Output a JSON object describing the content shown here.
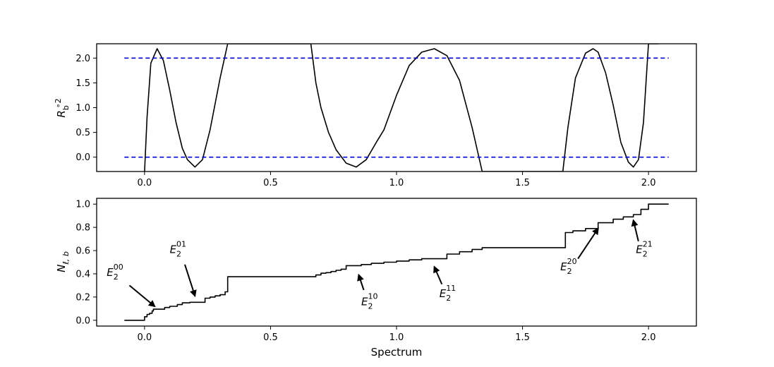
{
  "chart_data": [
    {
      "type": "line",
      "ylabel": "R°b²",
      "ylabel_parts": {
        "base": "R",
        "sup": "∘2",
        "sub": "b"
      },
      "xlim": [
        -0.19,
        2.19
      ],
      "ylim": [
        -0.29,
        2.29
      ],
      "xticks": [
        0.0,
        0.5,
        1.0,
        1.5,
        2.0
      ],
      "xtick_labels": [
        "0.0",
        "0.5",
        "1.0",
        "1.5",
        "2.0"
      ],
      "yticks": [
        0.0,
        0.5,
        1.0,
        1.5,
        2.0
      ],
      "ytick_labels": [
        "0.0",
        "0.5",
        "1.0",
        "1.5",
        "2.0"
      ],
      "grid": false,
      "series": [
        {
          "style": "solid",
          "color": "#000000",
          "x": [
            0.0,
            0.01,
            0.025,
            0.05,
            0.075,
            0.1,
            0.125,
            0.15,
            0.17,
            0.2,
            0.23,
            0.26,
            0.3,
            0.33,
            0.34,
            0.66,
            0.68,
            0.7,
            0.73,
            0.76,
            0.8,
            0.84,
            0.88,
            0.92,
            0.95,
            1.0,
            1.05,
            1.1,
            1.15,
            1.2,
            1.25,
            1.3,
            1.34,
            1.66,
            1.68,
            1.71,
            1.75,
            1.78,
            1.8,
            1.83,
            1.86,
            1.89,
            1.92,
            1.94,
            1.96,
            1.98,
            2.0,
            2.01,
            2.02,
            2.04
          ],
          "y": [
            -0.29,
            0.8,
            1.9,
            2.19,
            1.95,
            1.35,
            0.7,
            0.18,
            -0.05,
            -0.2,
            -0.05,
            0.55,
            1.6,
            2.29,
            2.29,
            2.29,
            1.5,
            1.0,
            0.5,
            0.15,
            -0.12,
            -0.2,
            -0.05,
            0.3,
            0.55,
            1.25,
            1.85,
            2.12,
            2.19,
            2.05,
            1.55,
            0.6,
            -0.29,
            -0.29,
            0.6,
            1.6,
            2.1,
            2.19,
            2.12,
            1.7,
            1.05,
            0.3,
            -0.1,
            -0.2,
            -0.05,
            0.7,
            2.29,
            2.29,
            2.29,
            2.29
          ]
        },
        {
          "style": "dashed",
          "color": "#0000cc",
          "x": [
            -0.08,
            2.08
          ],
          "y": [
            2.0,
            2.0
          ]
        },
        {
          "style": "dashed",
          "color": "#0000cc",
          "x": [
            -0.08,
            2.08
          ],
          "y": [
            0.0,
            0.0
          ]
        }
      ]
    },
    {
      "type": "line",
      "ylabel": "N_{ℓ,b}",
      "ylabel_parts": {
        "base": "N",
        "sub": "ℓ, b"
      },
      "xlabel": "Spectrum",
      "xlim": [
        -0.19,
        2.19
      ],
      "ylim": [
        -0.05,
        1.05
      ],
      "xticks": [
        0.0,
        0.5,
        1.0,
        1.5,
        2.0
      ],
      "xtick_labels": [
        "0.0",
        "0.5",
        "1.0",
        "1.5",
        "2.0"
      ],
      "yticks": [
        0.0,
        0.2,
        0.4,
        0.6,
        0.8,
        1.0
      ],
      "ytick_labels": [
        "0.0",
        "0.2",
        "0.4",
        "0.6",
        "0.8",
        "1.0"
      ],
      "grid": false,
      "series": [
        {
          "style": "step",
          "color": "#000000",
          "x": [
            -0.08,
            0.0,
            0.01,
            0.02,
            0.03,
            0.035,
            0.05,
            0.08,
            0.1,
            0.13,
            0.15,
            0.18,
            0.24,
            0.26,
            0.28,
            0.3,
            0.32,
            0.33,
            0.66,
            0.68,
            0.7,
            0.72,
            0.74,
            0.76,
            0.78,
            0.8,
            0.84,
            0.86,
            0.9,
            0.95,
            1.0,
            1.05,
            1.1,
            1.2,
            1.25,
            1.3,
            1.34,
            1.66,
            1.67,
            1.7,
            1.75,
            1.8,
            1.86,
            1.9,
            1.94,
            1.97,
            2.0,
            2.08
          ],
          "y": [
            0.0,
            0.03,
            0.05,
            0.06,
            0.08,
            0.095,
            0.095,
            0.11,
            0.12,
            0.135,
            0.15,
            0.155,
            0.19,
            0.2,
            0.21,
            0.22,
            0.245,
            0.375,
            0.375,
            0.39,
            0.405,
            0.41,
            0.42,
            0.43,
            0.44,
            0.47,
            0.47,
            0.48,
            0.49,
            0.5,
            0.51,
            0.52,
            0.53,
            0.57,
            0.59,
            0.61,
            0.625,
            0.625,
            0.755,
            0.77,
            0.79,
            0.84,
            0.87,
            0.89,
            0.91,
            0.955,
            1.0,
            1.0
          ]
        }
      ],
      "annotations": [
        {
          "base": "E",
          "sub": "2",
          "sup": "00",
          "text_x": -0.15,
          "text_y": 0.38,
          "arrow_from": [
            -0.06,
            0.3
          ],
          "arrow_to": [
            0.04,
            0.12
          ]
        },
        {
          "base": "E",
          "sub": "2",
          "sup": "01",
          "text_x": 0.1,
          "text_y": 0.58,
          "arrow_from": [
            0.16,
            0.48
          ],
          "arrow_to": [
            0.2,
            0.21
          ]
        },
        {
          "base": "E",
          "sub": "2",
          "sup": "10",
          "text_x": 0.86,
          "text_y": 0.13,
          "arrow_from": [
            0.87,
            0.26
          ],
          "arrow_to": [
            0.85,
            0.39
          ]
        },
        {
          "base": "E",
          "sub": "2",
          "sup": "11",
          "text_x": 1.17,
          "text_y": 0.2,
          "arrow_from": [
            1.18,
            0.31
          ],
          "arrow_to": [
            1.15,
            0.46
          ]
        },
        {
          "base": "E",
          "sub": "2",
          "sup": "20",
          "text_x": 1.65,
          "text_y": 0.43,
          "arrow_from": [
            1.72,
            0.53
          ],
          "arrow_to": [
            1.8,
            0.79
          ]
        },
        {
          "base": "E",
          "sub": "2",
          "sup": "21",
          "text_x": 1.95,
          "text_y": 0.58,
          "arrow_from": [
            1.96,
            0.68
          ],
          "arrow_to": [
            1.94,
            0.86
          ]
        }
      ]
    }
  ]
}
